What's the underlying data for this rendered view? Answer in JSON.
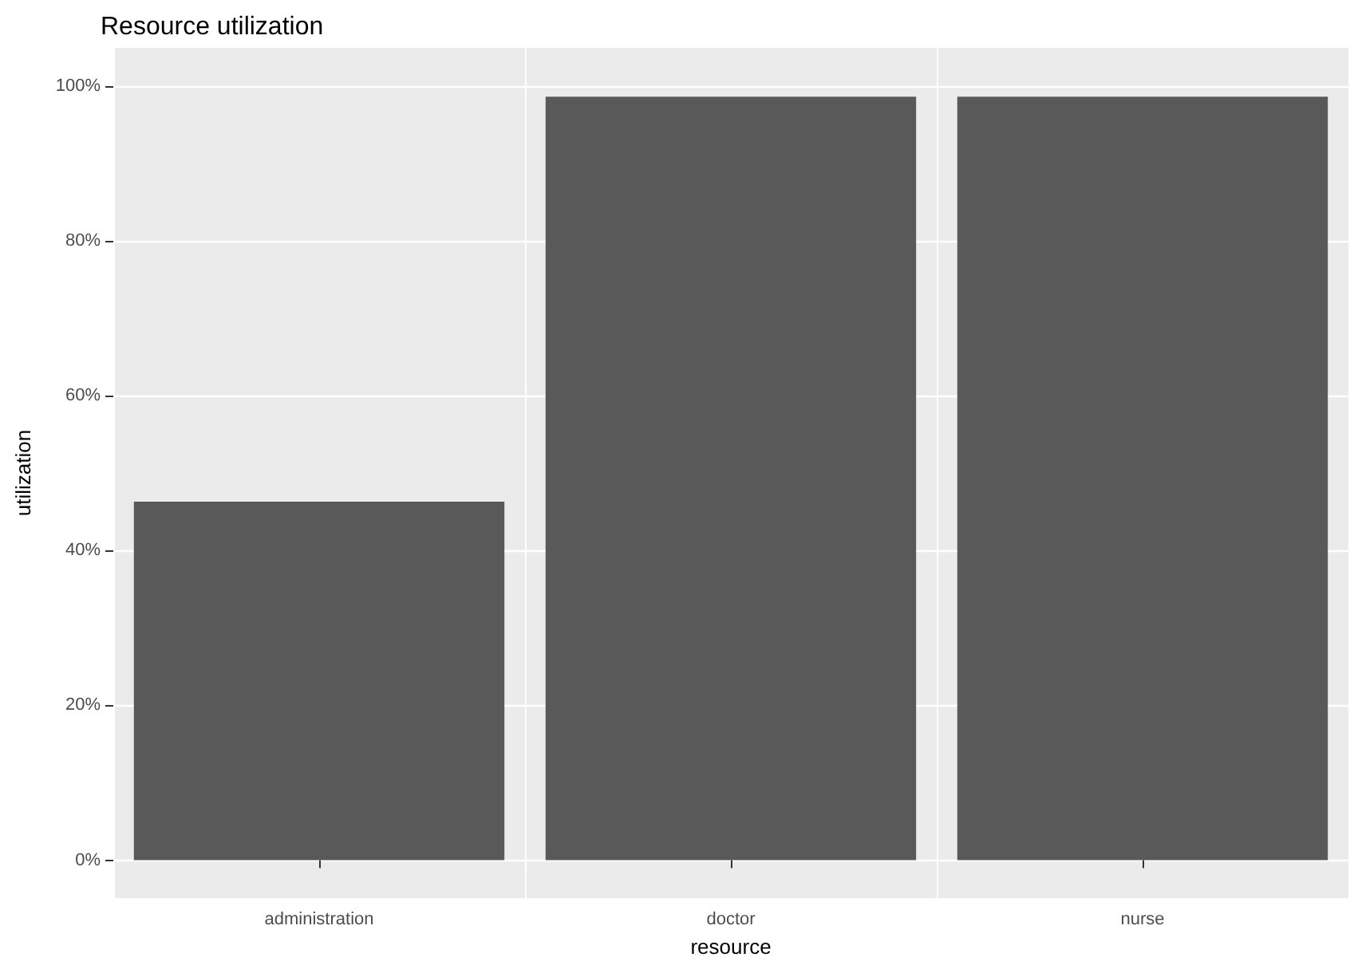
{
  "chart_data": {
    "type": "bar",
    "title": "Resource utilization",
    "xlabel": "resource",
    "ylabel": "utilization",
    "categories": [
      "administration",
      "doctor",
      "nurse"
    ],
    "values": [
      46.3,
      98.6,
      98.6
    ],
    "color": "#595959",
    "ylim": [
      -4.9,
      104.9
    ],
    "yticks": [
      {
        "value": 0,
        "label": "0%"
      },
      {
        "value": 20,
        "label": "20%"
      },
      {
        "value": 40,
        "label": "40%"
      },
      {
        "value": 60,
        "label": "60%"
      },
      {
        "value": 80,
        "label": "80%"
      },
      {
        "value": 100,
        "label": "100%"
      }
    ],
    "grid": true
  }
}
